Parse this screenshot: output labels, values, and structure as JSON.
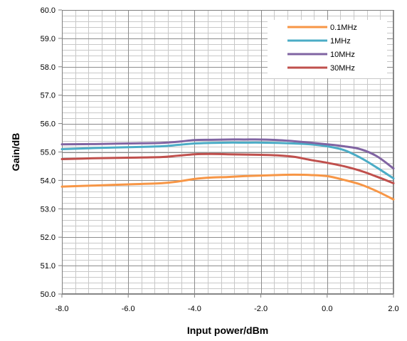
{
  "chart_data": {
    "type": "line",
    "xlabel": "Input power/dBm",
    "ylabel": "Gain/dB",
    "xlim": [
      -8.0,
      2.0
    ],
    "ylim": [
      50.0,
      60.0
    ],
    "x_ticks": [
      "-8.0",
      "-6.0",
      "-4.0",
      "-2.0",
      "0.0",
      "2.0"
    ],
    "y_ticks": [
      "50.0",
      "51.0",
      "52.0",
      "53.0",
      "54.0",
      "55.0",
      "56.0",
      "57.0",
      "58.0",
      "59.0",
      "60.0"
    ],
    "grid": true,
    "legend_position": "top-right",
    "x": [
      -8,
      -7,
      -6,
      -5,
      -4.5,
      -4,
      -3.5,
      -3,
      -2.5,
      -2,
      -1.5,
      -1,
      -0.5,
      0,
      0.5,
      1,
      1.5,
      2
    ],
    "series": [
      {
        "name": "0.1MHz",
        "color": "#f79646",
        "values": [
          53.78,
          53.82,
          53.86,
          53.9,
          53.96,
          54.05,
          54.1,
          54.12,
          54.15,
          54.17,
          54.19,
          54.2,
          54.19,
          54.15,
          54.02,
          53.86,
          53.62,
          53.33
        ]
      },
      {
        "name": "1MHz",
        "color": "#4bacc6",
        "values": [
          55.1,
          55.14,
          55.17,
          55.2,
          55.25,
          55.3,
          55.32,
          55.33,
          55.33,
          55.33,
          55.32,
          55.3,
          55.27,
          55.2,
          55.07,
          54.8,
          54.45,
          54.07
        ]
      },
      {
        "name": "10MHz",
        "color": "#8064a2",
        "values": [
          55.27,
          55.28,
          55.3,
          55.32,
          55.36,
          55.42,
          55.43,
          55.44,
          55.44,
          55.44,
          55.42,
          55.38,
          55.33,
          55.27,
          55.2,
          55.1,
          54.85,
          54.42
        ]
      },
      {
        "name": "30MHz",
        "color": "#c0504d",
        "values": [
          54.75,
          54.78,
          54.8,
          54.82,
          54.87,
          54.92,
          54.93,
          54.92,
          54.91,
          54.9,
          54.88,
          54.83,
          54.72,
          54.62,
          54.5,
          54.34,
          54.13,
          53.9
        ]
      }
    ]
  }
}
